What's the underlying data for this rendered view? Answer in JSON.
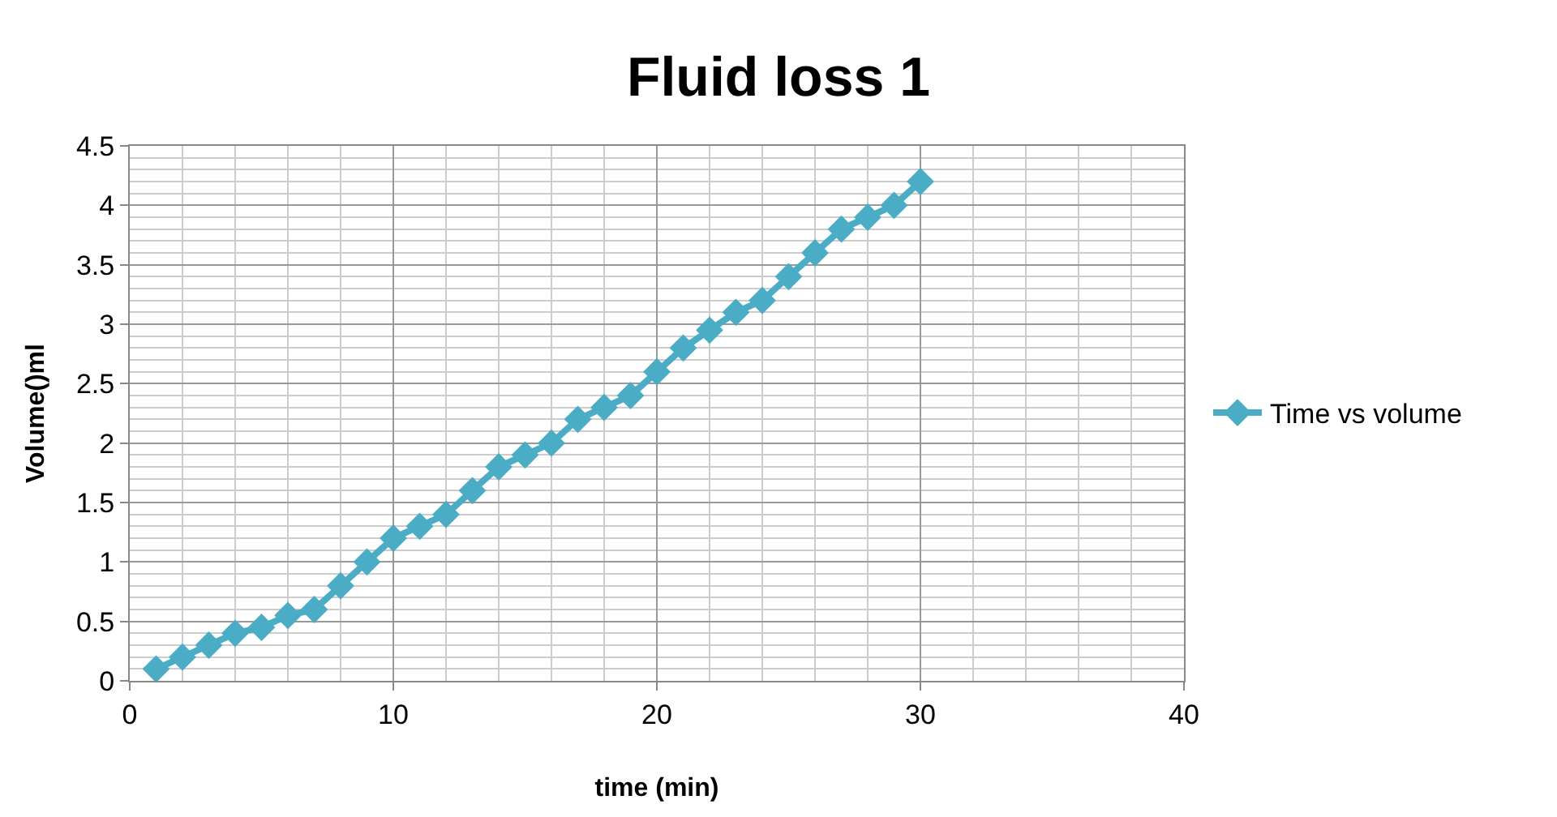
{
  "chart_data": {
    "type": "line",
    "title": "Fluid loss 1",
    "xlabel": "time (min)",
    "ylabel": "Volume()ml",
    "x": [
      1,
      2,
      3,
      4,
      5,
      6,
      7,
      8,
      9,
      10,
      11,
      12,
      13,
      14,
      15,
      16,
      17,
      18,
      19,
      20,
      21,
      22,
      23,
      24,
      25,
      26,
      27,
      28,
      29,
      30
    ],
    "series": [
      {
        "name": "Time vs volume",
        "color": "#4bacc6",
        "values": [
          0.1,
          0.2,
          0.3,
          0.4,
          0.45,
          0.55,
          0.6,
          0.8,
          1.0,
          1.2,
          1.3,
          1.4,
          1.6,
          1.8,
          1.9,
          2.0,
          2.2,
          2.3,
          2.4,
          2.6,
          2.8,
          2.95,
          3.1,
          3.2,
          3.4,
          3.6,
          3.8,
          3.9,
          4.0,
          4.2
        ]
      }
    ],
    "xlim": [
      0,
      40
    ],
    "xticks": [
      0,
      10,
      20,
      30,
      40
    ],
    "ylim": [
      0,
      4.5
    ],
    "yticks": [
      0,
      0.5,
      1,
      1.5,
      2,
      2.5,
      3,
      3.5,
      4,
      4.5
    ],
    "grid": true,
    "legend": "right",
    "marker": "diamond",
    "line_style": "solid"
  }
}
